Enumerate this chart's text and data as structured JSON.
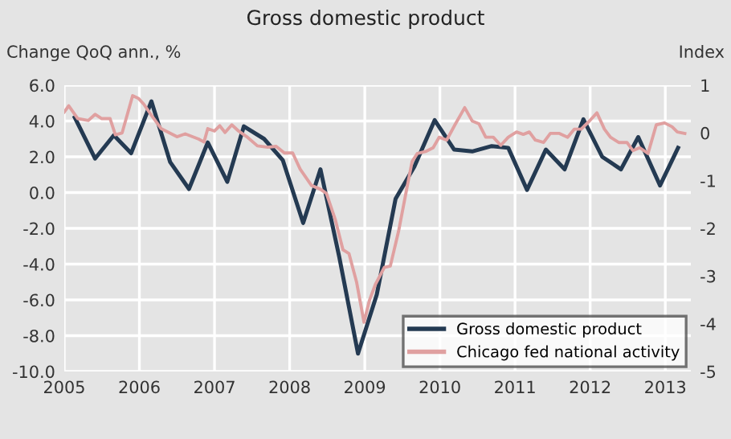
{
  "chart_data": {
    "type": "line",
    "title": "Gross domestic product",
    "ylabel": "Change QoQ ann., %",
    "y2label": "Index",
    "xlim": [
      2005,
      2013.34
    ],
    "xticks": [
      2005,
      2006,
      2007,
      2008,
      2009,
      2010,
      2011,
      2012,
      2013
    ],
    "ylim": [
      -10,
      6
    ],
    "yticks": [
      {
        "value": 6,
        "label": "6.0"
      },
      {
        "value": 4,
        "label": "4.0"
      },
      {
        "value": 2,
        "label": "2.0"
      },
      {
        "value": 0,
        "label": "0.0"
      },
      {
        "value": -2,
        "label": "-2.0"
      },
      {
        "value": -4,
        "label": "-4.0"
      },
      {
        "value": -6,
        "label": "-6.0"
      },
      {
        "value": -8,
        "label": "-8.0"
      },
      {
        "value": -10,
        "label": "-10.0"
      }
    ],
    "y2lim": [
      -5,
      1
    ],
    "y2ticks": [
      1,
      0,
      -1,
      -2,
      -3,
      -4,
      -5
    ],
    "grid": true,
    "legend": "bottom right",
    "marker": "none",
    "line_style": "solid",
    "series": [
      {
        "name": "Gross domestic product",
        "color": "#243a52",
        "x": [
          2005.14,
          2005.41,
          2005.66,
          2005.89,
          2006.16,
          2006.41,
          2006.66,
          2006.91,
          2007.17,
          2007.39,
          2007.66,
          2007.91,
          2008.18,
          2008.41,
          2008.66,
          2008.91,
          2009.16,
          2009.41,
          2009.66,
          2009.93,
          2010.19,
          2010.43,
          2010.69,
          2010.91,
          2011.16,
          2011.41,
          2011.66,
          2011.91,
          2012.16,
          2012.41,
          2012.64,
          2012.93,
          2013.17
        ],
        "values": [
          4.2,
          1.9,
          3.2,
          2.2,
          5.1,
          1.7,
          0.2,
          2.8,
          0.6,
          3.7,
          3.0,
          1.8,
          -1.7,
          1.3,
          -3.6,
          -9.0,
          -5.7,
          -0.35,
          1.45,
          4.05,
          2.4,
          2.3,
          2.6,
          2.5,
          0.15,
          2.4,
          1.3,
          4.1,
          2.0,
          1.3,
          3.1,
          0.4,
          2.5
        ]
      },
      {
        "name": "Chicago fed national activity",
        "color": "#e0a0a0",
        "axis": "y2",
        "x": [
          2005.0,
          2005.06,
          2005.18,
          2005.32,
          2005.41,
          2005.5,
          2005.61,
          2005.68,
          2005.77,
          2005.91,
          2005.99,
          2006.06,
          2006.16,
          2006.29,
          2006.5,
          2006.61,
          2006.79,
          2006.86,
          2006.91,
          2007.0,
          2007.07,
          2007.14,
          2007.23,
          2007.32,
          2007.43,
          2007.57,
          2007.71,
          2007.82,
          2007.93,
          2008.04,
          2008.14,
          2008.29,
          2008.41,
          2008.49,
          2008.61,
          2008.71,
          2008.79,
          2008.89,
          2008.99,
          2009.06,
          2009.14,
          2009.26,
          2009.34,
          2009.45,
          2009.56,
          2009.63,
          2009.7,
          2009.81,
          2009.91,
          2009.99,
          2010.09,
          2010.2,
          2010.33,
          2010.43,
          2010.52,
          2010.61,
          2010.71,
          2010.81,
          2010.91,
          2011.02,
          2011.11,
          2011.19,
          2011.27,
          2011.38,
          2011.47,
          2011.59,
          2011.7,
          2011.79,
          2011.88,
          2011.99,
          2012.09,
          2012.19,
          2012.27,
          2012.38,
          2012.49,
          2012.57,
          2012.66,
          2012.77,
          2012.88,
          2012.99,
          2013.09,
          2013.16,
          2013.26
        ],
        "values": [
          0.44,
          0.57,
          0.3,
          0.26,
          0.39,
          0.3,
          0.3,
          -0.04,
          0.0,
          0.78,
          0.72,
          0.6,
          0.37,
          0.09,
          -0.08,
          -0.02,
          -0.13,
          -0.19,
          0.09,
          0.04,
          0.15,
          0.01,
          0.17,
          0.04,
          -0.08,
          -0.27,
          -0.3,
          -0.28,
          -0.42,
          -0.42,
          -0.76,
          -1.1,
          -1.18,
          -1.27,
          -1.83,
          -2.45,
          -2.53,
          -3.12,
          -3.97,
          -3.52,
          -3.18,
          -2.82,
          -2.79,
          -2.06,
          -1.16,
          -0.6,
          -0.43,
          -0.39,
          -0.31,
          -0.09,
          -0.15,
          0.17,
          0.53,
          0.25,
          0.19,
          -0.09,
          -0.09,
          -0.26,
          -0.09,
          0.02,
          -0.03,
          0.02,
          -0.15,
          -0.2,
          -0.01,
          -0.01,
          -0.09,
          0.08,
          0.08,
          0.25,
          0.42,
          0.08,
          -0.09,
          -0.2,
          -0.2,
          -0.37,
          -0.31,
          -0.43,
          0.17,
          0.21,
          0.13,
          0.02,
          -0.01
        ]
      }
    ]
  }
}
